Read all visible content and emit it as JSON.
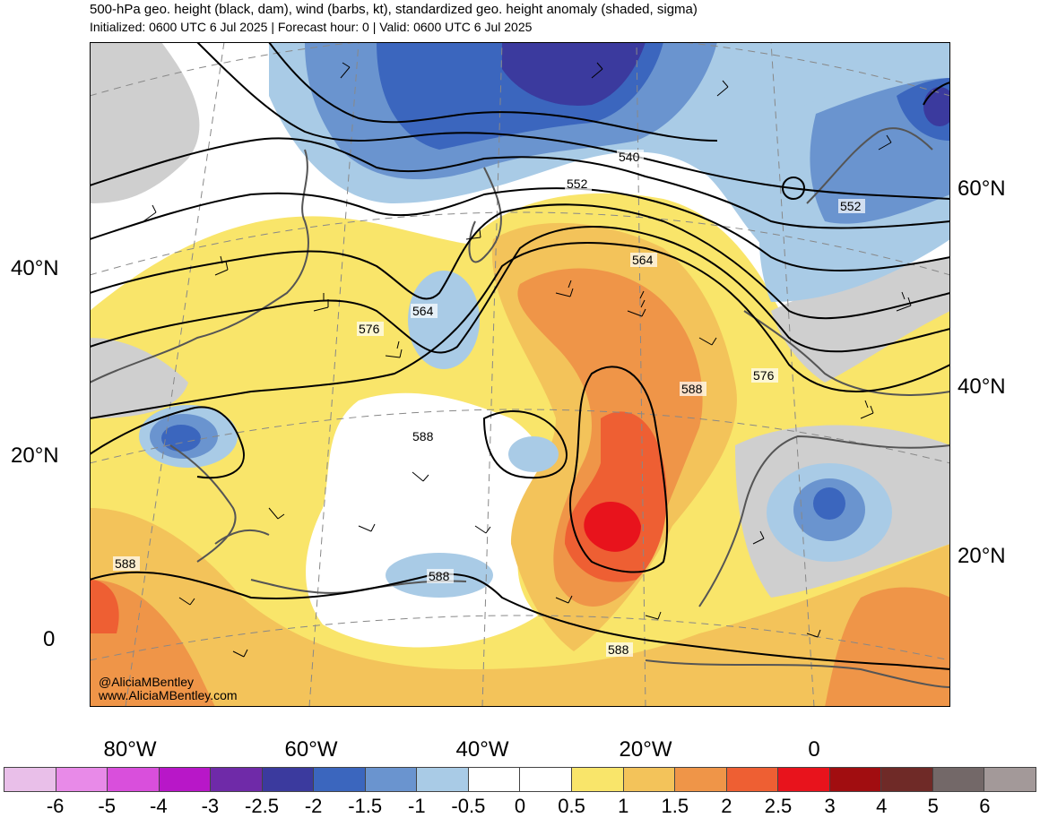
{
  "title": {
    "line1": "500-hPa geo. height (black, dam), wind (barbs, kt), standardized geo. height anomaly (shaded, sigma)",
    "line2": "Initialized: 0600 UTC 6 Jul 2025 | Forecast hour: 0 | Valid: 0600 UTC 6 Jul 2025"
  },
  "axes": {
    "left_lat_labels": [
      "40°N",
      "20°N",
      "0"
    ],
    "right_lat_labels": [
      "60°N",
      "40°N",
      "20°N"
    ],
    "lon_labels": [
      "80°W",
      "60°W",
      "40°W",
      "20°W",
      "0"
    ]
  },
  "contour_labels": [
    "540",
    "552",
    "552",
    "564",
    "564",
    "576",
    "576",
    "588",
    "588",
    "588",
    "588",
    "588"
  ],
  "credit": {
    "handle": "@AliciaMBentley",
    "site": "www.AliciaMBentley.com"
  },
  "colorbar": {
    "labels": [
      "-6",
      "-5",
      "-4",
      "-3",
      "-2.5",
      "-2",
      "-1.5",
      "-1",
      "-0.5",
      "0",
      "0.5",
      "1",
      "1.5",
      "2",
      "2.5",
      "3",
      "4",
      "5",
      "6"
    ],
    "colors": [
      "#e9bfe9",
      "#e88ae8",
      "#d94fdc",
      "#b817c8",
      "#6f2aa8",
      "#3b3a9e",
      "#3b66be",
      "#6a94cf",
      "#a9cbe6",
      "#ffffff",
      "#ffffff",
      "#f9e56a",
      "#f3c35a",
      "#ef9548",
      "#ee5f33",
      "#e8131c",
      "#a10d10",
      "#6f2a27",
      "#736868",
      "#a39999"
    ]
  },
  "colors": {
    "land_border": "#555555",
    "contour": "#000000",
    "grid": "#888888"
  }
}
